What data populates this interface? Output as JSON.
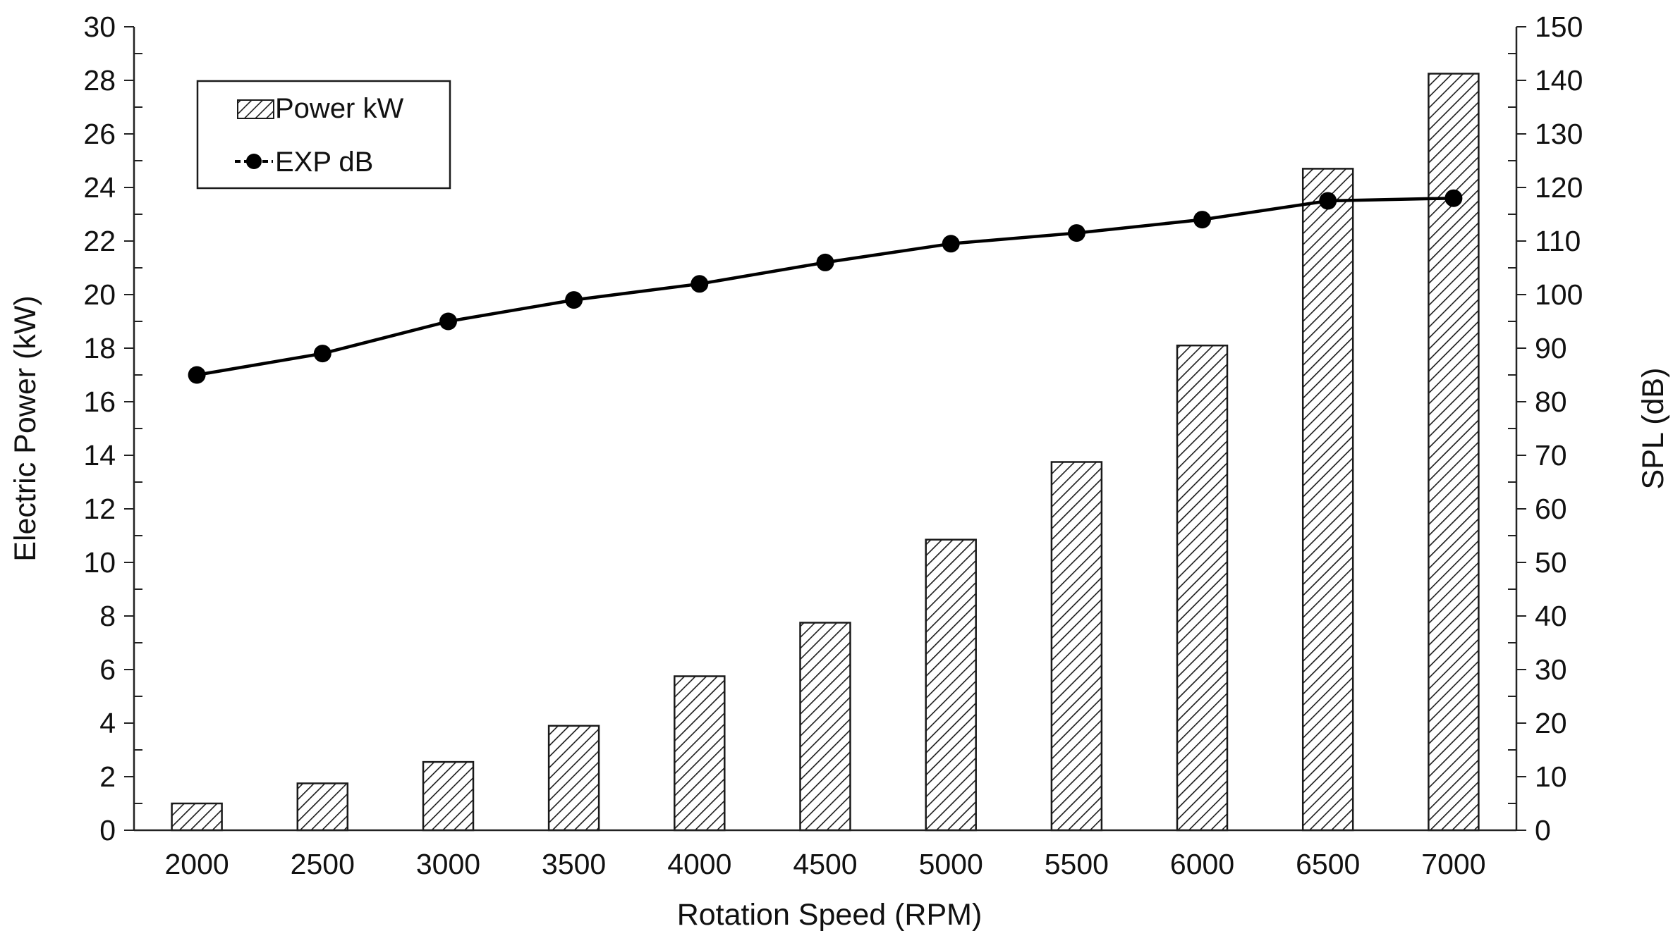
{
  "chart_data": {
    "type": "bar",
    "categories": [
      "2000",
      "2500",
      "3000",
      "3500",
      "4000",
      "4500",
      "5000",
      "5500",
      "6000",
      "6500",
      "7000"
    ],
    "series": [
      {
        "name": "Power kW",
        "type": "bar",
        "axis": "left",
        "values": [
          1.0,
          1.75,
          2.55,
          3.9,
          5.75,
          7.75,
          10.85,
          13.75,
          18.1,
          24.7,
          28.25
        ]
      },
      {
        "name": "EXP dB",
        "type": "line",
        "axis": "right",
        "values": [
          85.0,
          89.0,
          95.0,
          99.0,
          102.0,
          106.0,
          109.5,
          111.5,
          114.0,
          117.5,
          118.0
        ]
      }
    ],
    "xlabel": "Rotation Speed (RPM)",
    "ylabel": "Electric Power (kW)",
    "y2label": "SPL (dB)",
    "ylim": [
      0,
      30
    ],
    "y2lim": [
      0,
      150
    ],
    "yticks": [
      "0",
      "2",
      "4",
      "6",
      "8",
      "10",
      "12",
      "14",
      "16",
      "18",
      "20",
      "22",
      "24",
      "26",
      "28",
      "30"
    ],
    "y2ticks": [
      "0",
      "10",
      "20",
      "30",
      "40",
      "50",
      "60",
      "70",
      "80",
      "90",
      "100",
      "110",
      "120",
      "130",
      "140",
      "150"
    ],
    "grid": false,
    "legend_position": "top-left",
    "bar_fill": "diagonal-hatch",
    "colors": {
      "bar_stroke": "#1a1a1a",
      "hatch": "#1a1a1a",
      "line": "#000000",
      "marker": "#000000",
      "axis": "#222222"
    }
  }
}
